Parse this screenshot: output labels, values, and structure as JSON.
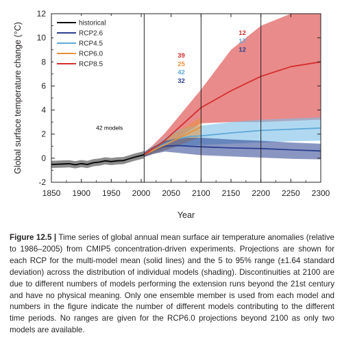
{
  "chart_data": {
    "type": "line",
    "title": "",
    "xlabel": "Year",
    "ylabel": "Global surface temperature change (°C)",
    "xlim": [
      1850,
      2300
    ],
    "ylim": [
      -2,
      12
    ],
    "x_ticks": [
      1850,
      1900,
      1950,
      2000,
      2050,
      2100,
      2150,
      2200,
      2250,
      2300
    ],
    "y_ticks": [
      -2,
      0,
      2,
      4,
      6,
      8,
      10,
      12
    ],
    "grid": false,
    "vertical_lines": [
      2005,
      2100,
      2200
    ],
    "legend_position": "top-left",
    "series": [
      {
        "name": "historical",
        "color": "#000000",
        "x": [
          1850,
          1860,
          1870,
          1880,
          1890,
          1900,
          1910,
          1920,
          1930,
          1940,
          1950,
          1960,
          1970,
          1980,
          1990,
          2000,
          2005
        ],
        "values": [
          -0.52,
          -0.5,
          -0.48,
          -0.46,
          -0.55,
          -0.45,
          -0.52,
          -0.38,
          -0.32,
          -0.22,
          -0.28,
          -0.22,
          -0.2,
          -0.05,
          0.1,
          0.22,
          0.3
        ],
        "lower": [
          -0.82,
          -0.8,
          -0.78,
          -0.76,
          -0.85,
          -0.75,
          -0.82,
          -0.68,
          -0.62,
          -0.52,
          -0.58,
          -0.52,
          -0.5,
          -0.35,
          -0.2,
          -0.08,
          0.0
        ],
        "upper": [
          -0.22,
          -0.2,
          -0.18,
          -0.16,
          -0.25,
          -0.15,
          -0.22,
          -0.08,
          -0.02,
          0.08,
          0.02,
          0.08,
          0.1,
          0.25,
          0.4,
          0.52,
          0.6
        ]
      },
      {
        "name": "RCP2.6",
        "color": "#2a3f8f",
        "x": [
          2005,
          2020,
          2040,
          2060,
          2080,
          2100,
          2150,
          2200,
          2250,
          2300
        ],
        "values": [
          0.3,
          0.65,
          1.0,
          1.05,
          1.0,
          0.95,
          0.85,
          0.8,
          0.7,
          0.6
        ],
        "lower": [
          0.1,
          0.35,
          0.55,
          0.45,
          0.35,
          0.25,
          0.15,
          0.05,
          -0.05,
          -0.1
        ],
        "upper": [
          0.5,
          0.95,
          1.45,
          1.65,
          1.7,
          1.7,
          1.55,
          1.45,
          1.3,
          1.2
        ]
      },
      {
        "name": "RCP4.5",
        "color": "#5ea8d8",
        "x": [
          2005,
          2020,
          2040,
          2060,
          2080,
          2100,
          2150,
          2200,
          2250,
          2300
        ],
        "values": [
          0.3,
          0.7,
          1.2,
          1.6,
          1.8,
          1.85,
          2.1,
          2.3,
          2.4,
          2.5
        ],
        "lower": [
          0.1,
          0.4,
          0.7,
          0.95,
          1.05,
          1.1,
          1.2,
          1.3,
          1.4,
          1.45
        ],
        "upper": [
          0.5,
          1.0,
          1.7,
          2.3,
          2.6,
          2.7,
          3.0,
          3.2,
          3.3,
          3.4
        ]
      },
      {
        "name": "RCP6.0",
        "color": "#e8913a",
        "x": [
          2005,
          2020,
          2040,
          2060,
          2080,
          2100
        ],
        "values": [
          0.3,
          0.65,
          1.1,
          1.6,
          2.1,
          2.6
        ],
        "lower": [
          0.1,
          0.35,
          0.65,
          1.0,
          1.4,
          1.8
        ],
        "upper": [
          0.5,
          0.95,
          1.55,
          2.2,
          2.8,
          3.4
        ]
      },
      {
        "name": "RCP8.5",
        "color": "#d42d2d",
        "x": [
          2005,
          2020,
          2040,
          2060,
          2080,
          2100,
          2150,
          2200,
          2250,
          2300
        ],
        "values": [
          0.3,
          0.8,
          1.5,
          2.4,
          3.3,
          4.2,
          5.6,
          6.8,
          7.6,
          8.0
        ],
        "lower": [
          0.1,
          0.5,
          1.0,
          1.6,
          2.3,
          2.9,
          3.0,
          3.0,
          3.1,
          3.2
        ],
        "upper": [
          0.5,
          1.1,
          2.1,
          3.3,
          4.5,
          5.7,
          9.0,
          11.0,
          12.0,
          12.0
        ]
      }
    ],
    "annotations": [
      {
        "text": "42 models",
        "x": 1947,
        "y": 2.35,
        "color": "#000000"
      },
      {
        "text": "39",
        "x": 2067,
        "y": 8.35,
        "color": "#d42d2d"
      },
      {
        "text": "25",
        "x": 2067,
        "y": 7.65,
        "color": "#e8913a"
      },
      {
        "text": "42",
        "x": 2067,
        "y": 6.95,
        "color": "#5ea8d8"
      },
      {
        "text": "32",
        "x": 2067,
        "y": 6.25,
        "color": "#2a3f8f"
      },
      {
        "text": "12",
        "x": 2169,
        "y": 10.25,
        "color": "#d42d2d"
      },
      {
        "text": "17",
        "x": 2169,
        "y": 9.55,
        "color": "#5ea8d8"
      },
      {
        "text": "12",
        "x": 2169,
        "y": 8.85,
        "color": "#2a3f8f"
      }
    ]
  },
  "caption": {
    "label": "Figure 12.5 |",
    "text": "Time series of global annual mean surface air temperature anomalies (relative to 1986–2005) from CMIP5 concentration-driven experiments. Projections are shown for each RCP for the multi-model mean (solid lines) and the 5 to 95% range (±1.64 standard deviation) across the distribution of individual models (shading). Discontinuities at 2100 are due to different numbers of models performing the extension runs beyond the 21st century and have no physical meaning. Only one ensemble member is used from each model and numbers in the figure indicate the number of different models contributing to the different time periods. No ranges are given for the RCP6.0 projections beyond 2100 as only two models are available."
  }
}
